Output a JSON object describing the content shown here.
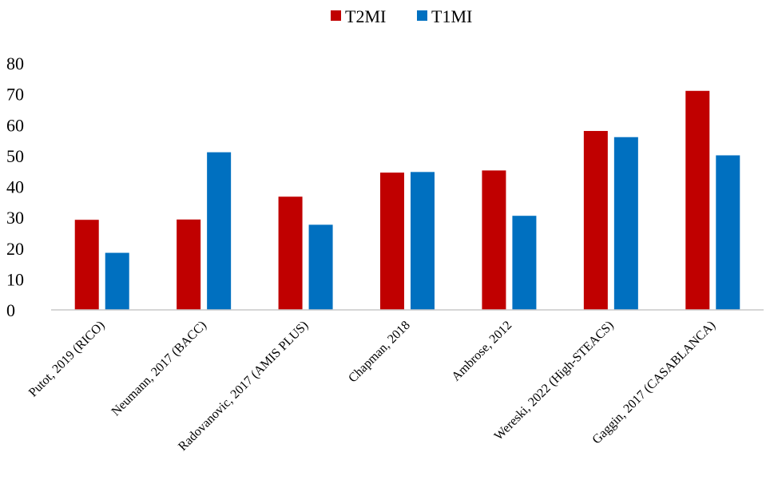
{
  "chart_data": {
    "type": "bar",
    "title": "",
    "xlabel": "",
    "ylabel": "",
    "ylim": [
      0,
      80
    ],
    "yticks": [
      0,
      10,
      20,
      30,
      40,
      50,
      60,
      70,
      80
    ],
    "grid": false,
    "legend": "top-center",
    "categories": [
      "Putot, 2019 (RICO)",
      "Neumann, 2017 (BACC)",
      "Radovanovic, 2017 (AMIS PLUS)",
      "Chapman, 2018",
      "Ambrose, 2012",
      "Wereski, 2022 (High-STEACS)",
      "Gaggin, 2017 (CASABLANCA)"
    ],
    "series": [
      {
        "name": "T2MI",
        "color": "#c00000",
        "values": [
          29.2,
          29.3,
          36.7,
          44.5,
          45.2,
          58.0,
          71.0
        ]
      },
      {
        "name": "T1MI",
        "color": "#0070c0",
        "values": [
          18.5,
          51.1,
          27.6,
          44.7,
          30.5,
          56.0,
          50.1
        ]
      }
    ]
  }
}
